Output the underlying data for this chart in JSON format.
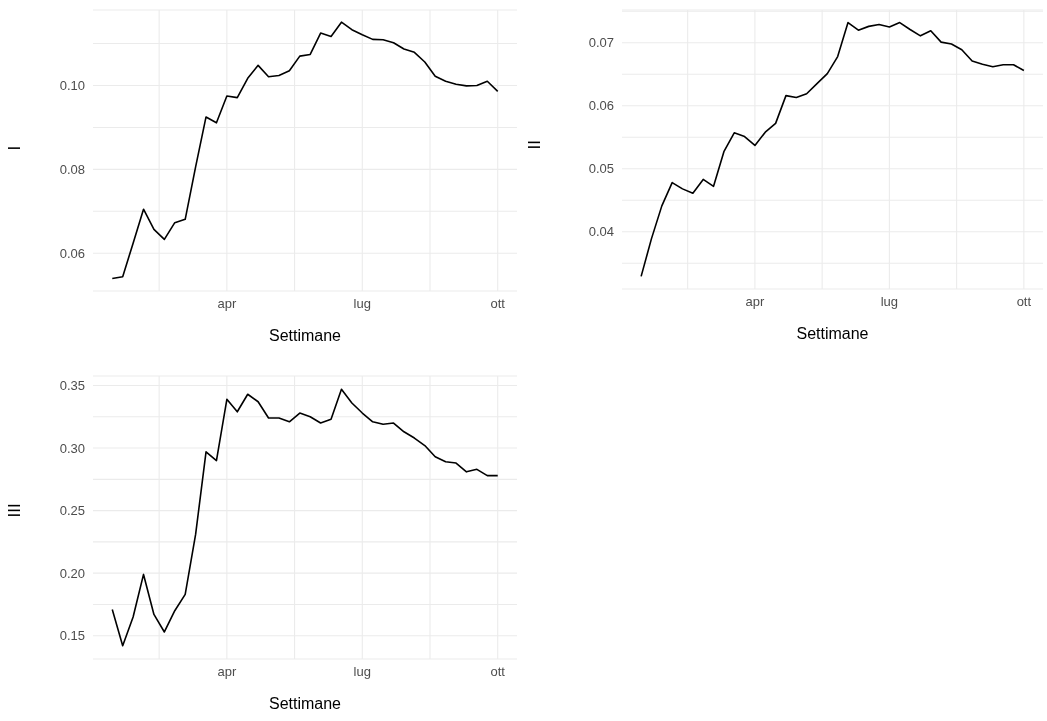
{
  "chart_data": [
    {
      "type": "line",
      "xlabel": "Settimane",
      "ylabel": "I",
      "grid": true,
      "categories": [
        null,
        null,
        null,
        null,
        null,
        null,
        null,
        null,
        null,
        null,
        null,
        "apr",
        null,
        null,
        null,
        null,
        null,
        null,
        null,
        null,
        null,
        null,
        null,
        null,
        "lug",
        null,
        null,
        null,
        null,
        null,
        null,
        null,
        null,
        null,
        null,
        null,
        null,
        "ott"
      ],
      "series": [
        {
          "color": "#000000",
          "values": [
            0.054,
            0.0544,
            0.0624,
            0.0705,
            0.0657,
            0.0633,
            0.0673,
            0.0681,
            0.0806,
            0.0925,
            0.0911,
            0.0975,
            0.0971,
            0.1017,
            0.1048,
            0.1021,
            0.1024,
            0.1035,
            0.107,
            0.1074,
            0.1125,
            0.1117,
            0.1151,
            0.1133,
            0.1121,
            0.111,
            0.1109,
            0.1102,
            0.1087,
            0.1079,
            0.1056,
            0.1022,
            0.101,
            0.1003,
            0.0999,
            0.1,
            0.101,
            0.0986
          ]
        }
      ],
      "ylim": [
        0.051,
        0.118
      ],
      "yticks": [
        0.06,
        {
          "value": 0.07,
          "label": null
        },
        0.08,
        {
          "value": 0.09,
          "label": null
        },
        {
          "value": 0.1,
          "label": "0.10"
        },
        {
          "value": 0.11,
          "label": null
        }
      ]
    },
    {
      "type": "line",
      "xlabel": "Settimane",
      "ylabel": "II",
      "grid": true,
      "categories": [
        null,
        null,
        null,
        null,
        null,
        null,
        null,
        null,
        null,
        null,
        null,
        "apr",
        null,
        null,
        null,
        null,
        null,
        null,
        null,
        null,
        null,
        null,
        null,
        null,
        "lug",
        null,
        null,
        null,
        null,
        null,
        null,
        null,
        null,
        null,
        null,
        null,
        null,
        "ott"
      ],
      "series": [
        {
          "color": "#000000",
          "values": [
            0.0329,
            0.0389,
            0.0441,
            0.0478,
            0.0468,
            0.0461,
            0.0483,
            0.0472,
            0.0527,
            0.0557,
            0.0551,
            0.0537,
            0.0558,
            0.0572,
            0.0616,
            0.0613,
            0.0619,
            0.0635,
            0.0651,
            0.0678,
            0.0732,
            0.072,
            0.0726,
            0.0729,
            0.0725,
            0.0732,
            0.0721,
            0.0711,
            0.0719,
            0.0701,
            0.0698,
            0.0689,
            0.0671,
            0.0666,
            0.0662,
            0.0665,
            0.0665,
            0.0656
          ]
        }
      ],
      "ylim": [
        0.0309,
        0.0752
      ],
      "yticks": [
        {
          "value": 0.035,
          "label": null
        },
        0.04,
        {
          "value": 0.045,
          "label": null
        },
        0.05,
        {
          "value": 0.055,
          "label": null
        },
        0.06,
        {
          "value": 0.065,
          "label": null
        },
        0.07,
        {
          "value": 0.075,
          "label": null
        }
      ]
    },
    {
      "type": "line",
      "xlabel": "Settimane",
      "ylabel": "III",
      "grid": true,
      "categories": [
        null,
        null,
        null,
        null,
        null,
        null,
        null,
        null,
        null,
        null,
        null,
        "apr",
        null,
        null,
        null,
        null,
        null,
        null,
        null,
        null,
        null,
        null,
        null,
        null,
        "lug",
        null,
        null,
        null,
        null,
        null,
        null,
        null,
        null,
        null,
        null,
        null,
        null,
        "ott"
      ],
      "series": [
        {
          "color": "#000000",
          "values": [
            0.171,
            0.142,
            0.165,
            0.199,
            0.167,
            0.153,
            0.17,
            0.183,
            0.231,
            0.297,
            0.29,
            0.339,
            0.329,
            0.343,
            0.337,
            0.324,
            0.324,
            0.321,
            0.328,
            0.325,
            0.32,
            0.323,
            0.347,
            0.336,
            0.328,
            0.321,
            0.319,
            0.32,
            0.313,
            0.308,
            0.302,
            0.293,
            0.289,
            0.288,
            0.281,
            0.283,
            0.278,
            0.278
          ]
        }
      ],
      "ylim": [
        0.1314,
        0.3576
      ],
      "yticks": [
        {
          "value": 0.15,
          "label": "0.15"
        },
        {
          "value": 0.175,
          "label": null
        },
        {
          "value": 0.2,
          "label": "0.20"
        },
        {
          "value": 0.225,
          "label": null
        },
        {
          "value": 0.25,
          "label": "0.25"
        },
        {
          "value": 0.275,
          "label": null
        },
        {
          "value": 0.3,
          "label": "0.30"
        },
        {
          "value": 0.325,
          "label": null
        },
        {
          "value": 0.35,
          "label": "0.35"
        }
      ]
    }
  ]
}
